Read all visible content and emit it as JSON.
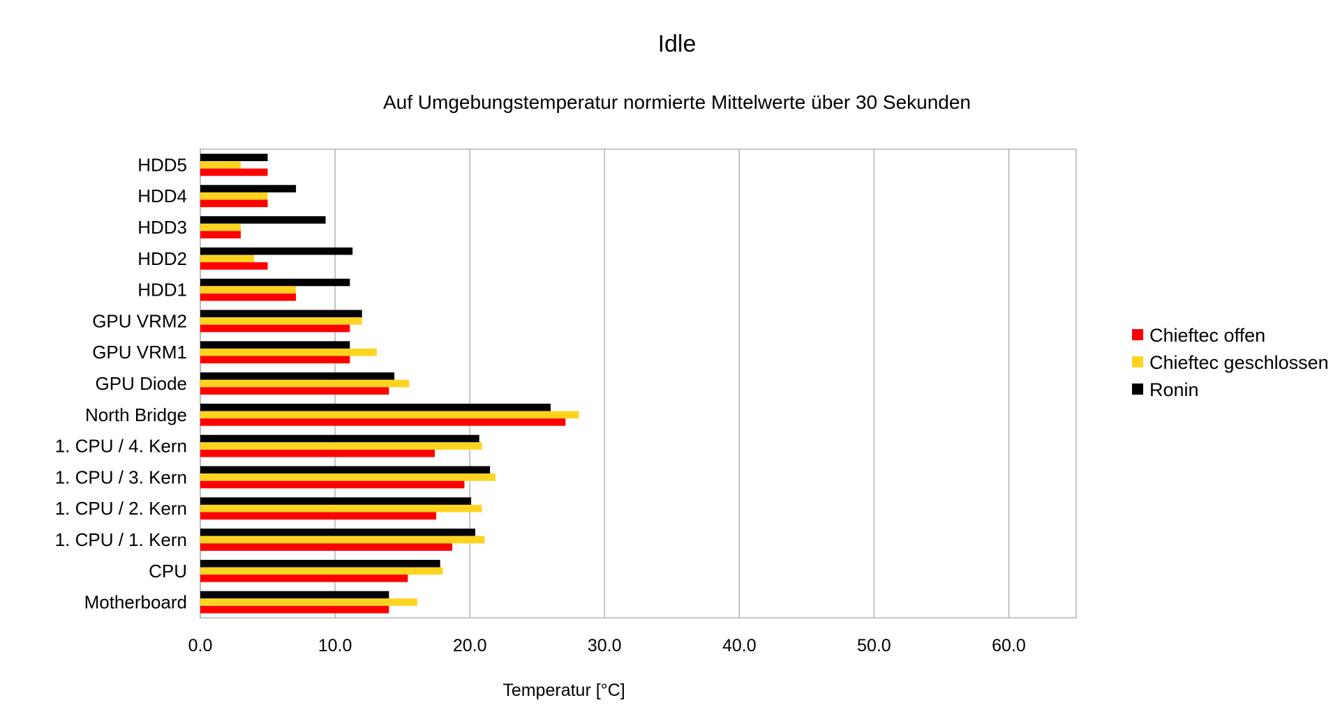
{
  "chart_data": {
    "type": "bar",
    "orientation": "horizontal",
    "title": "Idle",
    "subtitle": "Auf Umgebungstemperatur normierte Mittelwerte über 30 Sekunden",
    "xlabel": "Temperatur [°C]",
    "ylabel": "",
    "xlim": [
      0,
      65
    ],
    "xticks": [
      0,
      10,
      20,
      30,
      40,
      50,
      60
    ],
    "tick_format_decimals": 1,
    "grid": "vertical",
    "legend_position": "right",
    "categories": [
      "HDD5",
      "HDD4",
      "HDD3",
      "HDD2",
      "HDD1",
      "GPU VRM2",
      "GPU VRM1",
      "GPU Diode",
      "North Bridge",
      "1. CPU / 4. Kern",
      "1. CPU / 3. Kern",
      "1. CPU / 2. Kern",
      "1. CPU / 1. Kern",
      "CPU",
      "Motherboard"
    ],
    "series": [
      {
        "name": "Chieftec offen",
        "color": "#ff0000",
        "values": [
          5.0,
          5.0,
          3.0,
          5.0,
          7.1,
          11.1,
          11.1,
          14.0,
          27.1,
          17.4,
          19.6,
          17.5,
          18.7,
          15.4,
          14.0
        ]
      },
      {
        "name": "Chieftec geschlossen",
        "color": "#ffd320",
        "values": [
          3.0,
          5.0,
          3.0,
          4.0,
          7.1,
          12.0,
          13.1,
          15.5,
          28.1,
          20.9,
          21.9,
          20.9,
          21.1,
          18.0,
          16.1
        ]
      },
      {
        "name": "Ronin",
        "color": "#000000",
        "values": [
          5.0,
          7.1,
          9.3,
          11.3,
          11.1,
          12.0,
          11.1,
          14.4,
          26.0,
          20.7,
          21.5,
          20.1,
          20.4,
          17.8,
          14.0
        ]
      }
    ]
  }
}
